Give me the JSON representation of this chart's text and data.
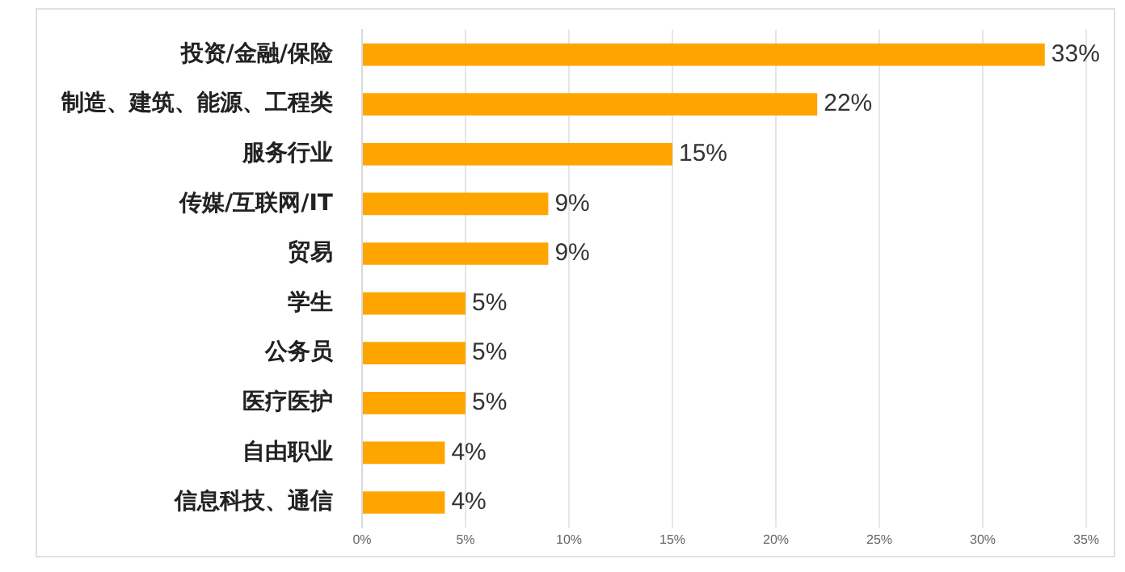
{
  "chart_data": {
    "type": "bar",
    "orientation": "horizontal",
    "categories": [
      "投资/金融/保险",
      "制造、建筑、能源、工程类",
      "服务行业",
      "传媒/互联网/IT",
      "贸易",
      "学生",
      "公务员",
      "医疗医护",
      "自由职业",
      "信息科技、通信"
    ],
    "values": [
      33,
      22,
      15,
      9,
      9,
      5,
      5,
      5,
      4,
      4
    ],
    "value_labels": [
      "33%",
      "22%",
      "15%",
      "9%",
      "9%",
      "5%",
      "5%",
      "5%",
      "4%",
      "4%"
    ],
    "color": "#ffa500",
    "xlim": [
      0,
      35
    ],
    "xticks": [
      {
        "value": 0,
        "label": "0%"
      },
      {
        "value": 5,
        "label": "5%"
      },
      {
        "value": 10,
        "label": "10%"
      },
      {
        "value": 15,
        "label": "15%"
      },
      {
        "value": 20,
        "label": "20%"
      },
      {
        "value": 25,
        "label": "25%"
      },
      {
        "value": 30,
        "label": "30%"
      },
      {
        "value": 35,
        "label": "35%"
      }
    ],
    "grid": "x",
    "legend": false
  }
}
